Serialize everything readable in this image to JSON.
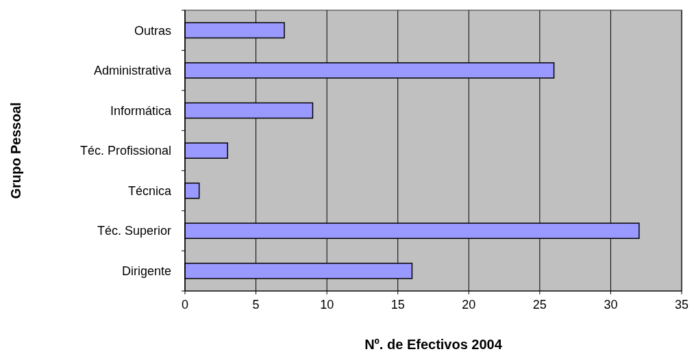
{
  "chart_data": {
    "type": "bar",
    "orientation": "horizontal",
    "categories": [
      "Outras",
      "Administrativa",
      "Informática",
      "Téc. Profissional",
      "Técnica",
      "Téc. Superior",
      "Dirigente"
    ],
    "values": [
      7,
      26,
      9,
      3,
      1,
      32,
      16
    ],
    "color": "#9999ff",
    "xlim": [
      0,
      35
    ],
    "xticks": [
      0,
      5,
      10,
      15,
      20,
      25,
      30,
      35
    ],
    "grid": "x",
    "xlabel": "Nº. de Efectivos 2004",
    "ylabel": "Grupo Pessoal"
  }
}
